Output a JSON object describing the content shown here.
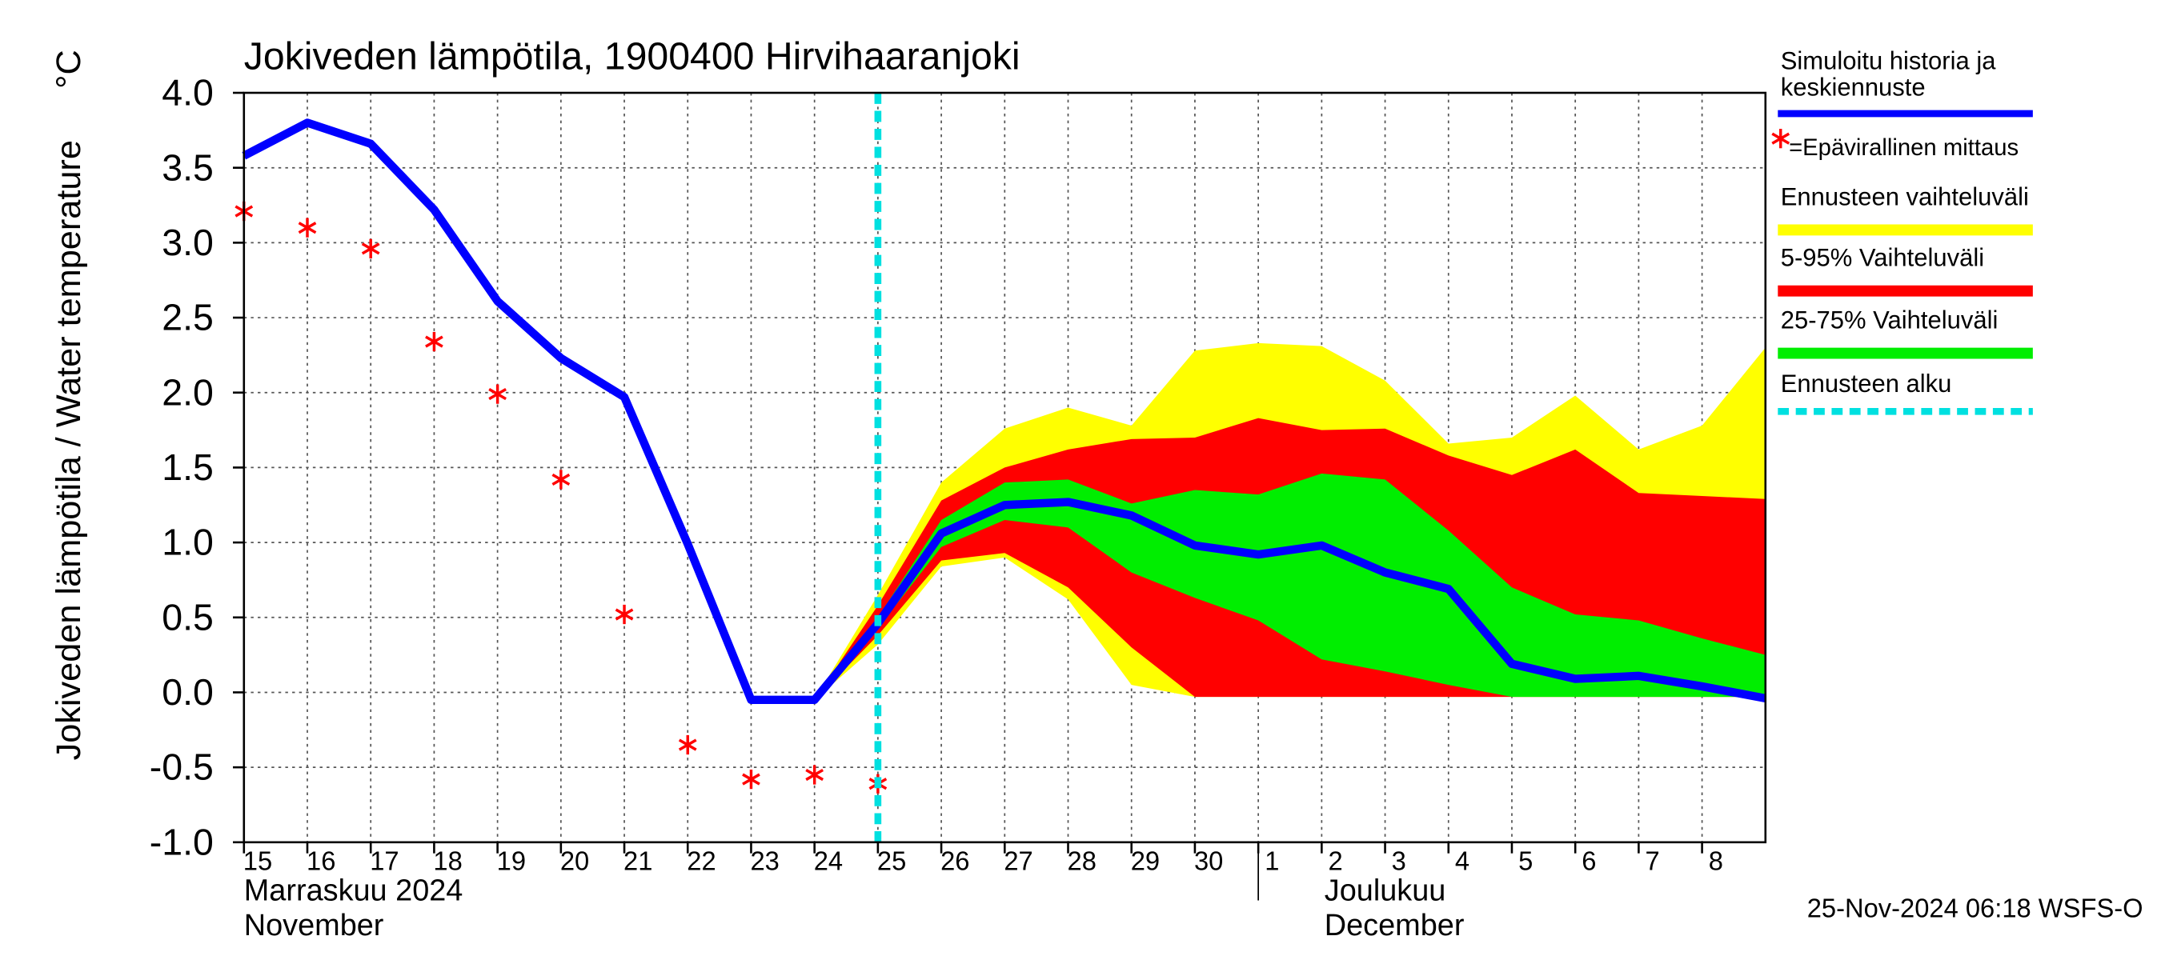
{
  "chart_data": {
    "type": "line",
    "title": "Jokiveden lämpötila, 1900400 Hirvihaaranjoki",
    "y_label": "Jokiveden lämpötila / Water temperature",
    "y_unit": "°C",
    "x": [
      "2024-11-15",
      "2024-11-16",
      "2024-11-17",
      "2024-11-18",
      "2024-11-19",
      "2024-11-20",
      "2024-11-21",
      "2024-11-22",
      "2024-11-23",
      "2024-11-24",
      "2024-11-25",
      "2024-11-26",
      "2024-11-27",
      "2024-11-28",
      "2024-11-29",
      "2024-11-30",
      "2024-12-01",
      "2024-12-02",
      "2024-12-03",
      "2024-12-04",
      "2024-12-05",
      "2024-12-06",
      "2024-12-07",
      "2024-12-08",
      "2024-12-09"
    ],
    "xlim": [
      "2024-11-15",
      "2024-12-09"
    ],
    "xticks": [
      {
        "value": "2024-11-15",
        "label": "15"
      },
      {
        "value": "2024-11-16",
        "label": "16"
      },
      {
        "value": "2024-11-17",
        "label": "17"
      },
      {
        "value": "2024-11-18",
        "label": "18"
      },
      {
        "value": "2024-11-19",
        "label": "19"
      },
      {
        "value": "2024-11-20",
        "label": "20"
      },
      {
        "value": "2024-11-21",
        "label": "21"
      },
      {
        "value": "2024-11-22",
        "label": "22"
      },
      {
        "value": "2024-11-23",
        "label": "23"
      },
      {
        "value": "2024-11-24",
        "label": "24"
      },
      {
        "value": "2024-11-25",
        "label": "25"
      },
      {
        "value": "2024-11-26",
        "label": "26"
      },
      {
        "value": "2024-11-27",
        "label": "27"
      },
      {
        "value": "2024-11-28",
        "label": "28"
      },
      {
        "value": "2024-11-29",
        "label": "29"
      },
      {
        "value": "2024-11-30",
        "label": "30"
      },
      {
        "value": "2024-12-01",
        "label": "1"
      },
      {
        "value": "2024-12-02",
        "label": "2"
      },
      {
        "value": "2024-12-03",
        "label": "3"
      },
      {
        "value": "2024-12-04",
        "label": "4"
      },
      {
        "value": "2024-12-05",
        "label": "5"
      },
      {
        "value": "2024-12-06",
        "label": "6"
      },
      {
        "value": "2024-12-07",
        "label": "7"
      },
      {
        "value": "2024-12-08",
        "label": "8"
      }
    ],
    "month_labels": [
      {
        "value": "2024-11-15",
        "lines": [
          "Marraskuu 2024",
          "November"
        ]
      },
      {
        "value": "2024-12-01",
        "lines": [
          "Joulukuu",
          "December"
        ]
      }
    ],
    "ylim": [
      -1.0,
      4.0
    ],
    "yticks": [
      {
        "value": -1,
        "label": "-1.0"
      },
      {
        "value": -0.5,
        "label": "-0.5"
      },
      {
        "value": 0,
        "label": "0.0"
      },
      {
        "value": 0.5,
        "label": "0.5"
      },
      {
        "value": 1,
        "label": "1.0"
      },
      {
        "value": 1.5,
        "label": "1.5"
      },
      {
        "value": 2,
        "label": "2.0"
      },
      {
        "value": 2.5,
        "label": "2.5"
      },
      {
        "value": 3,
        "label": "3.0"
      },
      {
        "value": 3.5,
        "label": "3.5"
      },
      {
        "value": 4,
        "label": "4.0"
      }
    ],
    "grid": true,
    "forecast_start": "2024-11-25",
    "forecast_start_name": "Ennusteen alku",
    "forecast_start_color": "#00e0e0",
    "series": [
      {
        "name": "Ennusteen vaihteluväli",
        "type": "band",
        "color": "#ffff00",
        "upper": [
          null,
          null,
          null,
          null,
          null,
          null,
          null,
          null,
          null,
          -0.05,
          0.65,
          1.4,
          1.76,
          1.9,
          1.78,
          2.28,
          2.33,
          2.31,
          2.08,
          1.66,
          1.7,
          1.98,
          1.62,
          1.78,
          2.3
        ],
        "lower": [
          null,
          null,
          null,
          null,
          null,
          null,
          null,
          null,
          null,
          -0.05,
          0.32,
          0.84,
          0.9,
          0.62,
          0.05,
          -0.03,
          -0.03,
          -0.03,
          -0.03,
          -0.03,
          -0.03,
          -0.03,
          -0.03,
          -0.03,
          -0.03
        ]
      },
      {
        "name": "5-95% Vaihteluväli",
        "type": "band",
        "color": "#ff0000",
        "upper": [
          null,
          null,
          null,
          null,
          null,
          null,
          null,
          null,
          null,
          -0.05,
          0.58,
          1.28,
          1.5,
          1.62,
          1.69,
          1.7,
          1.83,
          1.75,
          1.76,
          1.58,
          1.45,
          1.62,
          1.33,
          1.31,
          1.29
        ],
        "lower": [
          null,
          null,
          null,
          null,
          null,
          null,
          null,
          null,
          null,
          -0.05,
          0.38,
          0.88,
          0.93,
          0.7,
          0.3,
          -0.03,
          -0.03,
          -0.03,
          -0.03,
          -0.03,
          -0.03,
          -0.03,
          -0.03,
          -0.03,
          -0.03
        ]
      },
      {
        "name": "25-75% Vaihteluväli",
        "type": "band",
        "color": "#00ee00",
        "upper": [
          null,
          null,
          null,
          null,
          null,
          null,
          null,
          null,
          null,
          -0.05,
          0.5,
          1.15,
          1.4,
          1.42,
          1.26,
          1.35,
          1.32,
          1.46,
          1.42,
          1.08,
          0.7,
          0.52,
          0.48,
          0.36,
          0.25
        ],
        "lower": [
          null,
          null,
          null,
          null,
          null,
          null,
          null,
          null,
          null,
          -0.05,
          0.43,
          0.97,
          1.15,
          1.1,
          0.8,
          0.63,
          0.48,
          0.22,
          0.14,
          0.05,
          -0.03,
          -0.03,
          -0.03,
          -0.03,
          -0.03
        ]
      },
      {
        "name": "Simuloitu historia ja\nkeskiennuste",
        "type": "line",
        "color": "#0000ff",
        "values": [
          3.58,
          3.8,
          3.66,
          3.22,
          2.61,
          2.23,
          1.97,
          0.99,
          -0.05,
          -0.05,
          0.46,
          1.06,
          1.25,
          1.27,
          1.18,
          0.98,
          0.92,
          0.98,
          0.8,
          0.69,
          0.19,
          0.09,
          0.11,
          0.04,
          -0.04
        ]
      },
      {
        "name": "=Epävirallinen mittaus",
        "type": "scatter",
        "color": "#ff0000",
        "values": [
          3.21,
          3.1,
          2.96,
          2.34,
          1.99,
          1.42,
          0.52,
          -0.35,
          -0.58,
          -0.55,
          -0.61,
          null,
          null,
          null,
          null,
          null,
          null,
          null,
          null,
          null,
          null,
          null,
          null,
          null,
          null
        ]
      }
    ],
    "footer": "25-Nov-2024 06:18 WSFS-O"
  }
}
